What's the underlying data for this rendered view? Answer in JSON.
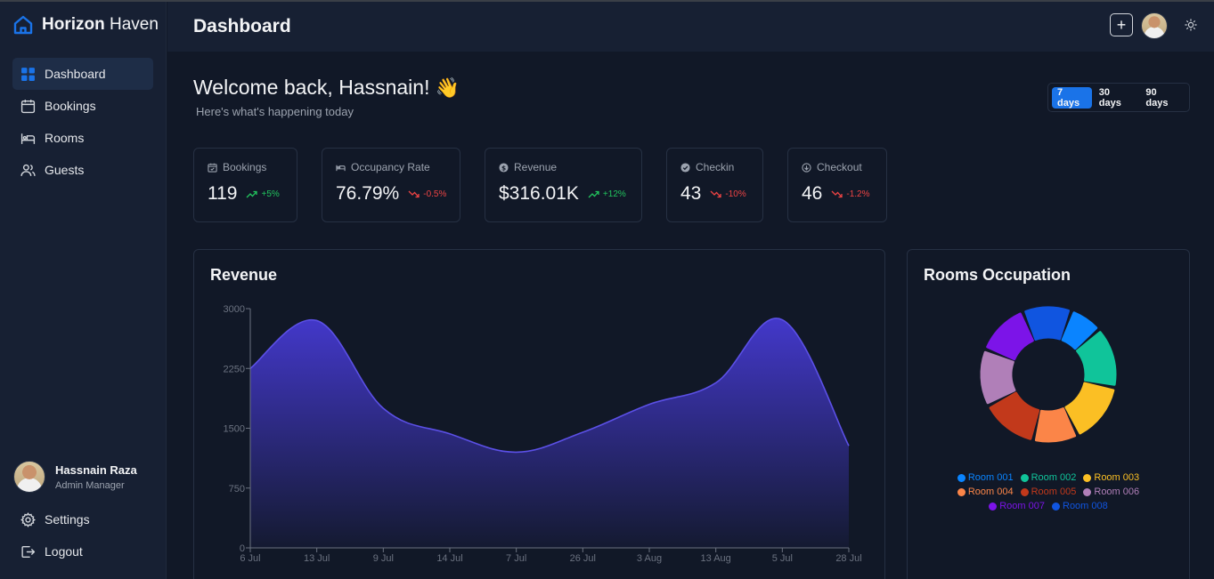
{
  "brand": {
    "name_bold": "Horizon",
    "name_light": "Haven"
  },
  "sidebar": {
    "nav": [
      {
        "label": "Dashboard",
        "icon": "dashboard-icon",
        "active": true
      },
      {
        "label": "Bookings",
        "icon": "calendar-icon",
        "active": false
      },
      {
        "label": "Rooms",
        "icon": "bed-icon",
        "active": false
      },
      {
        "label": "Guests",
        "icon": "users-icon",
        "active": false
      }
    ],
    "user": {
      "name": "Hassnain Raza",
      "role": "Admin Manager"
    },
    "bottom": [
      {
        "label": "Settings",
        "icon": "gear-icon"
      },
      {
        "label": "Logout",
        "icon": "logout-icon"
      }
    ]
  },
  "header": {
    "title": "Dashboard",
    "add_label": "+"
  },
  "main": {
    "welcome": "Welcome back, Hassnain!",
    "wave": "👋",
    "subtitle": "Here's what's happening today",
    "ranges": [
      {
        "label": "7 days",
        "active": true
      },
      {
        "label": "30 days",
        "active": false
      },
      {
        "label": "90 days",
        "active": false
      }
    ],
    "stats": [
      {
        "label": "Bookings",
        "value": "119",
        "delta": "+5%",
        "trend": "up",
        "icon": "calendar-check-icon"
      },
      {
        "label": "Occupancy Rate",
        "value": "76.79%",
        "delta": "-0.5%",
        "trend": "down",
        "icon": "bed-icon"
      },
      {
        "label": "Revenue",
        "value": "$316.01K",
        "delta": "+12%",
        "trend": "up",
        "icon": "dollar-icon"
      },
      {
        "label": "Checkin",
        "value": "43",
        "delta": "-10%",
        "trend": "down",
        "icon": "check-circle-icon"
      },
      {
        "label": "Checkout",
        "value": "46",
        "delta": "-1.2%",
        "trend": "down",
        "icon": "arrow-circle-icon"
      }
    ]
  },
  "revenue_card": {
    "title": "Revenue"
  },
  "occupation_card": {
    "title": "Rooms Occupation"
  },
  "chart_data": [
    {
      "type": "area",
      "title": "Revenue",
      "categories": [
        "6 Jul",
        "13 Jul",
        "9 Jul",
        "14 Jul",
        "7 Jul",
        "26 Jul",
        "3 Aug",
        "13 Aug",
        "5 Jul",
        "28 Jul"
      ],
      "values": [
        2250,
        2850,
        1750,
        1430,
        1200,
        1450,
        1800,
        2070,
        2860,
        1280
      ],
      "yticks": [
        0,
        750,
        1500,
        2250,
        3000
      ],
      "ylim": [
        0,
        3000
      ],
      "color": "#4f46e5",
      "grid": false
    },
    {
      "type": "pie",
      "title": "Rooms Occupation",
      "donut": true,
      "labels": [
        "Room 001",
        "Room 002",
        "Room 003",
        "Room 004",
        "Room 005",
        "Room 006",
        "Room 007",
        "Room 008"
      ],
      "values": [
        8,
        15,
        15,
        11,
        14,
        14,
        13,
        12
      ],
      "colors": [
        "#0a84ff",
        "#10c49a",
        "#fbbf24",
        "#fb8548",
        "#c2391b",
        "#b07fb8",
        "#7c14e8",
        "#1055e0"
      ],
      "legend": "bottom"
    }
  ]
}
